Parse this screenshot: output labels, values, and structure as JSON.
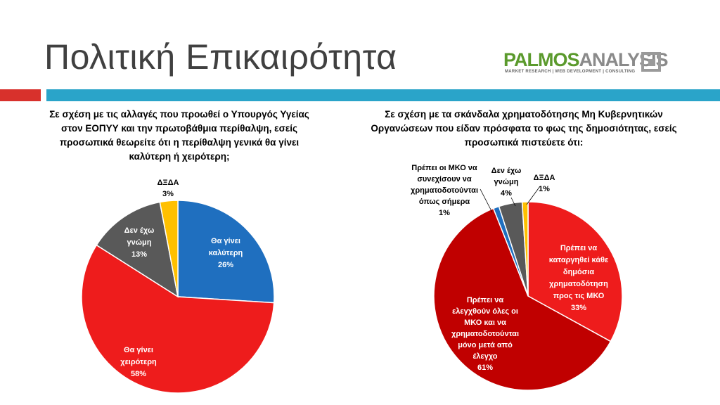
{
  "title": "Πολιτική Επικαιρότητα",
  "logo": {
    "text_a": "PALMOS",
    "text_b": "ANALYSIS",
    "sub": "MARKET RESEARCH | WEB DEVELOPMENT | CONSULTING"
  },
  "colors": {
    "red_bar": "#d8312c",
    "blue_bar": "#2aa4c9"
  },
  "chart_data": [
    {
      "type": "pie",
      "question": "Σε σχέση με τις αλλαγές που προωθεί ο Υπουργός Υγείας στον ΕΟΠΥΥ και την πρωτοβάθμια περίθαλψη, εσείς προσωπικά θεωρείτε ότι η περίθαλψη γενικά θα γίνει καλύτερη ή χειρότερη;",
      "slices": [
        {
          "label": [
            "Θα γίνει",
            "καλύτερη"
          ],
          "value": 26,
          "value_label": "26%",
          "color": "#1f6fbf"
        },
        {
          "label": [
            "Θα γίνει",
            "χειρότερη"
          ],
          "value": 58,
          "value_label": "58%",
          "color": "#ee1c1c"
        },
        {
          "label": [
            "Δεν έχω",
            "γνώμη"
          ],
          "value": 13,
          "value_label": "13%",
          "color": "#595959"
        },
        {
          "label": [
            "ΔΞΔΑ"
          ],
          "value": 3,
          "value_label": "3%",
          "color": "#ffc000"
        }
      ]
    },
    {
      "type": "pie",
      "question": "Σε σχέση με τα σκάνδαλα χρηματοδότησης Μη Κυβερνητικών Οργανώσεων που είδαν πρόσφατα το φως της δημοσιότητας, εσείς προσωπικά πιστεύετε ότι:",
      "slices": [
        {
          "label": [
            "Πρέπει να",
            "καταργηθεί κάθε",
            "δημόσια",
            "χρηματοδότηση",
            "προς τις ΜΚΟ"
          ],
          "value": 33,
          "value_label": "33%",
          "color": "#ee1c1c"
        },
        {
          "label": [
            "Πρέπει να",
            "ελεγχθούν όλες οι",
            "ΜΚΟ και να",
            "χρηματοδοτούνται",
            "μόνο μετά από",
            "έλεγχο"
          ],
          "value": 61,
          "value_label": "61%",
          "color": "#c00000"
        },
        {
          "label": [
            "Πρέπει οι ΜΚΟ να",
            "συνεχίσουν να",
            "χρηματοδοτούνται",
            "όπως σήμερα"
          ],
          "value": 1,
          "value_label": "1%",
          "color": "#1f6fbf"
        },
        {
          "label": [
            "Δεν έχω",
            "γνώμη"
          ],
          "value": 4,
          "value_label": "4%",
          "color": "#595959"
        },
        {
          "label": [
            "ΔΞΔΑ"
          ],
          "value": 1,
          "value_label": "1%",
          "color": "#ffc000"
        }
      ]
    }
  ]
}
